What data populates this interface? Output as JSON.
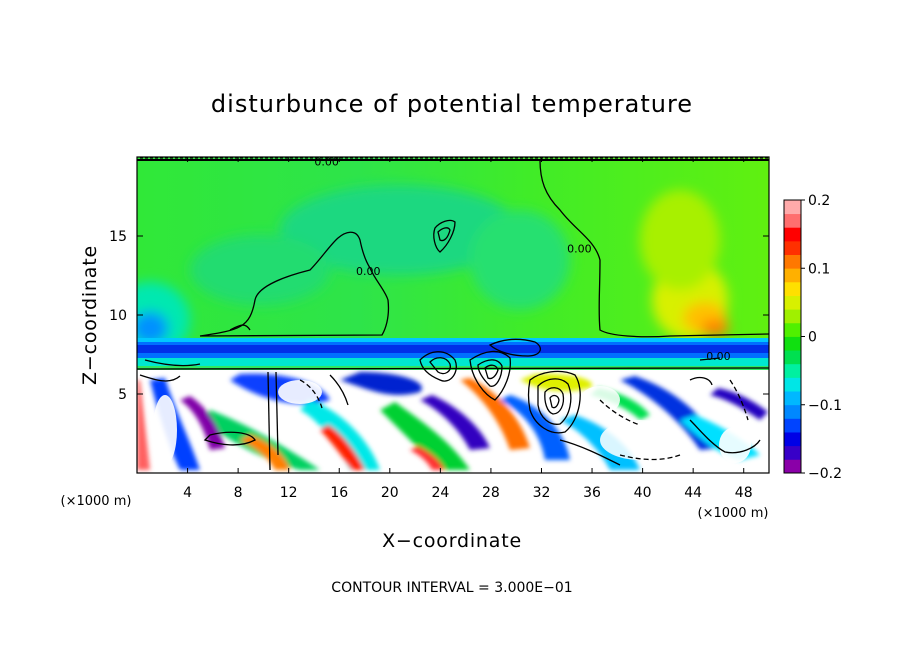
{
  "chart_data": {
    "type": "heatmap",
    "title": "disturbunce of potential temperature",
    "xlabel": "X−coordinate",
    "ylabel": "Z−coordinate",
    "x_unit_left": "(×1000 m)",
    "x_unit_right": "(×1000 m)",
    "footer": "CONTOUR INTERVAL = 3.000E−01",
    "xlim": [
      0,
      50
    ],
    "ylim": [
      0,
      20
    ],
    "x_ticks": [
      {
        "value": 4,
        "label": "4"
      },
      {
        "value": 8,
        "label": "8"
      },
      {
        "value": 12,
        "label": "12"
      },
      {
        "value": 16,
        "label": "16"
      },
      {
        "value": 20,
        "label": "20"
      },
      {
        "value": 24,
        "label": "24"
      },
      {
        "value": 28,
        "label": "28"
      },
      {
        "value": 32,
        "label": "32"
      },
      {
        "value": 36,
        "label": "36"
      },
      {
        "value": 40,
        "label": "40"
      },
      {
        "value": 44,
        "label": "44"
      },
      {
        "value": 48,
        "label": "48"
      }
    ],
    "y_ticks": [
      {
        "value": 5,
        "label": "5"
      },
      {
        "value": 10,
        "label": "10"
      },
      {
        "value": 15,
        "label": "15"
      }
    ],
    "contour_labels": [
      {
        "x": 15,
        "z": 19.7,
        "label": "0.00"
      },
      {
        "x": 18.3,
        "z": 12.8,
        "label": "0.00"
      },
      {
        "x": 35,
        "z": 14.2,
        "label": "0.00"
      },
      {
        "x": 46,
        "z": 7.4,
        "label": "0.00"
      }
    ],
    "colorbar": {
      "min": -0.2,
      "max": 0.2,
      "tick_labels": [
        {
          "value": 0.2,
          "label": "0.2"
        },
        {
          "value": 0.1,
          "label": "0.1"
        },
        {
          "value": 0,
          "label": "0"
        },
        {
          "value": -0.1,
          "label": "−0.1"
        },
        {
          "value": -0.2,
          "label": "−0.2"
        }
      ],
      "colors": [
        "#8a00a8",
        "#3800c8",
        "#0000e6",
        "#0044ff",
        "#0088ff",
        "#00b8ff",
        "#00e6e6",
        "#00f0a0",
        "#00e050",
        "#10e010",
        "#50f000",
        "#a0f000",
        "#d8f000",
        "#ffe000",
        "#ffb000",
        "#ff7800",
        "#ff3000",
        "#ff0000",
        "#ff6e6e",
        "#ffaaaa"
      ]
    },
    "field": {
      "background": "#30e030",
      "upper_region": {
        "z_range": [
          6.5,
          19.7
        ],
        "dominant_value": 0.0
      },
      "stable_band": {
        "z_range": [
          7.2,
          8.2
        ],
        "value": -0.12
      },
      "lower_region": {
        "z_range": [
          0,
          6.5
        ],
        "value_range": [
          -0.2,
          0.2
        ]
      },
      "anomalies": [
        {
          "x": 20,
          "z": 17.5,
          "value": -0.04
        },
        {
          "x": 9,
          "z": 13,
          "value": -0.03
        },
        {
          "x": 43,
          "z": 12,
          "value": 0.1
        },
        {
          "x": 42,
          "z": 16,
          "value": 0.05
        },
        {
          "x": 3,
          "z": 10.5,
          "value": -0.09
        }
      ]
    }
  }
}
